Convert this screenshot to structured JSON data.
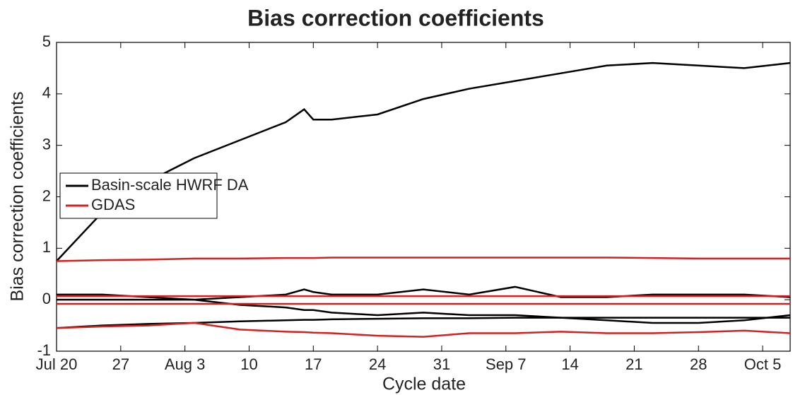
{
  "chart_data": {
    "type": "line",
    "title": "Bias correction coefficients",
    "x_label": "Cycle date",
    "y_label": "Bias correction coefficients",
    "x": [
      0,
      5,
      10,
      15,
      20,
      25,
      27,
      28,
      30,
      35,
      40,
      45,
      50,
      55,
      60,
      65,
      70,
      75,
      80
    ],
    "xlim": [
      0,
      80
    ],
    "xticks": [
      {
        "value": 0,
        "label": "Jul 20"
      },
      {
        "value": 7,
        "label": "27"
      },
      {
        "value": 14,
        "label": "Aug 3"
      },
      {
        "value": 21,
        "label": "10"
      },
      {
        "value": 28,
        "label": "17"
      },
      {
        "value": 35,
        "label": "24"
      },
      {
        "value": 42,
        "label": "31"
      },
      {
        "value": 49,
        "label": "Sep 7"
      },
      {
        "value": 56,
        "label": "14"
      },
      {
        "value": 63,
        "label": "21"
      },
      {
        "value": 70,
        "label": "28"
      },
      {
        "value": 77,
        "label": "Oct 5"
      }
    ],
    "ylim": [
      -1,
      5
    ],
    "yticks": [
      -1,
      0,
      1,
      2,
      3,
      4,
      5
    ],
    "legend": "left",
    "series": [
      {
        "name": "Basin-scale HWRF DA",
        "color": "#000000",
        "lines": [
          [
            0.75,
            1.7,
            2.3,
            2.75,
            3.1,
            3.45,
            3.7,
            3.5,
            3.5,
            3.6,
            3.9,
            4.1,
            4.25,
            4.4,
            4.55,
            4.6,
            4.55,
            4.5,
            4.6
          ],
          [
            0.1,
            0.1,
            0.05,
            0.0,
            0.05,
            0.1,
            0.2,
            0.15,
            0.1,
            0.1,
            0.2,
            0.1,
            0.25,
            0.05,
            0.05,
            0.1,
            0.1,
            0.1,
            0.05
          ],
          [
            0.0,
            0.0,
            0.0,
            0.0,
            -0.1,
            -0.15,
            -0.2,
            -0.2,
            -0.25,
            -0.3,
            -0.25,
            -0.3,
            -0.3,
            -0.35,
            -0.4,
            -0.45,
            -0.45,
            -0.4,
            -0.3
          ],
          [
            -0.55,
            -0.5,
            -0.47,
            -0.45,
            -0.42,
            -0.4,
            -0.39,
            -0.39,
            -0.38,
            -0.37,
            -0.36,
            -0.36,
            -0.35,
            -0.35,
            -0.35,
            -0.35,
            -0.35,
            -0.35,
            -0.35
          ]
        ]
      },
      {
        "name": "GDAS",
        "color": "#d62020",
        "lines": [
          [
            0.75,
            0.77,
            0.78,
            0.8,
            0.8,
            0.81,
            0.81,
            0.81,
            0.82,
            0.82,
            0.82,
            0.82,
            0.82,
            0.82,
            0.82,
            0.81,
            0.8,
            0.8,
            0.8
          ],
          [
            0.07,
            0.07,
            0.07,
            0.07,
            0.07,
            0.07,
            0.07,
            0.07,
            0.07,
            0.07,
            0.07,
            0.07,
            0.07,
            0.07,
            0.07,
            0.07,
            0.07,
            0.07,
            0.07
          ],
          [
            -0.08,
            -0.08,
            -0.08,
            -0.08,
            -0.08,
            -0.08,
            -0.08,
            -0.08,
            -0.08,
            -0.08,
            -0.08,
            -0.08,
            -0.08,
            -0.08,
            -0.08,
            -0.08,
            -0.08,
            -0.08,
            -0.08
          ],
          [
            -0.55,
            -0.52,
            -0.5,
            -0.45,
            -0.58,
            -0.62,
            -0.63,
            -0.64,
            -0.65,
            -0.7,
            -0.72,
            -0.65,
            -0.65,
            -0.62,
            -0.65,
            -0.65,
            -0.63,
            -0.6,
            -0.65
          ]
        ]
      }
    ]
  }
}
